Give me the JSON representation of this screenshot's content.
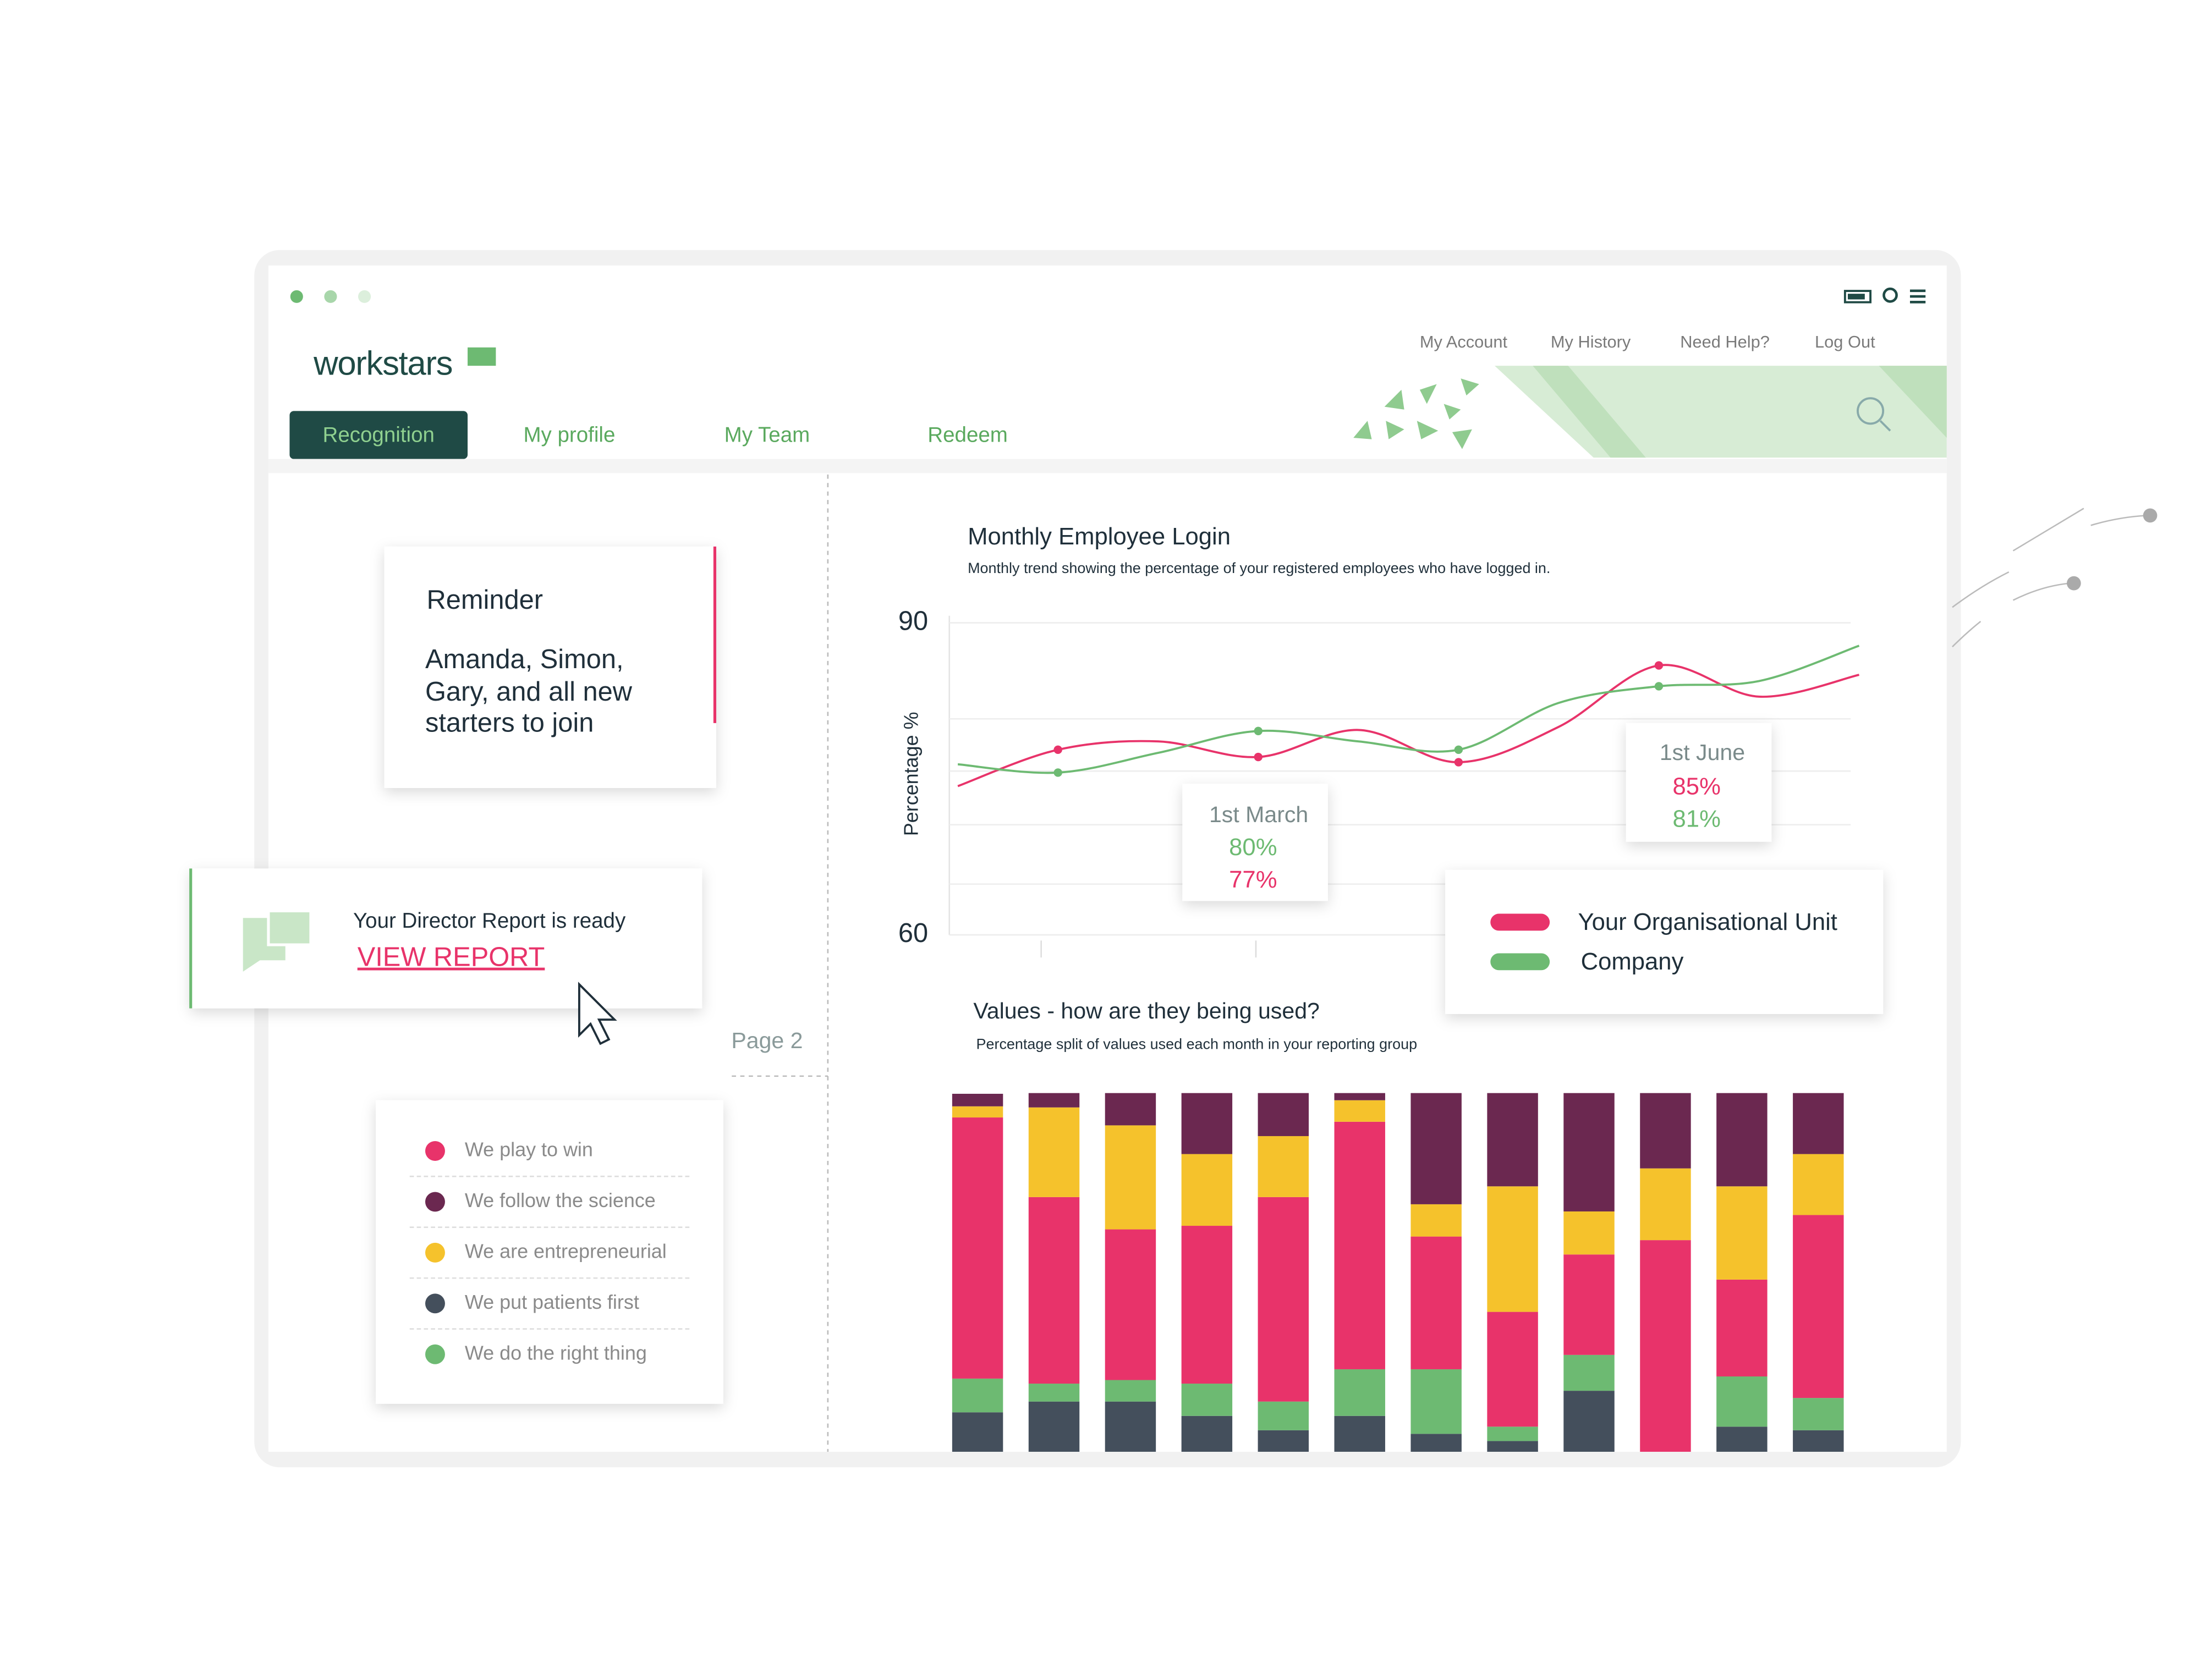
{
  "header": {
    "logo": "workstars",
    "links": [
      "My Account",
      "My History",
      "Need Help?",
      "Log Out"
    ],
    "tabs": [
      "Recognition",
      "My profile",
      "My Team",
      "Redeem"
    ]
  },
  "reminder": {
    "title": "Reminder",
    "body": [
      "Amanda, Simon,",
      "Gary, and all new",
      "starters to join"
    ]
  },
  "report": {
    "text": "Your Director Report is ready",
    "link": "VIEW REPORT"
  },
  "page_label": "Page 2",
  "chart_data": [
    {
      "type": "line",
      "title": "Monthly Employee Login",
      "subtitle": "Monthly trend showing the percentage of your registered employees who have logged in.",
      "y_label": "Percentage %",
      "categories": [
        null,
        null,
        null,
        null,
        null,
        null,
        null,
        null,
        null,
        null
      ],
      "series": [
        {
          "name": "Your Organisational Unit",
          "color": "#e8336a",
          "values": [
            74.3,
            77.8,
            78.6,
            77.1,
            79.7,
            76.6,
            80,
            85.9,
            82.9,
            85
          ]
        },
        {
          "name": "Company",
          "color": "#6dba72",
          "values": [
            76.4,
            75.6,
            77.5,
            79.6,
            78.6,
            77.8,
            82.3,
            83.9,
            84.4,
            87.8
          ]
        }
      ],
      "ylim": [
        60,
        90
      ],
      "yticks": [
        60,
        90
      ],
      "annotations": [
        {
          "text": "1st March",
          "lines": [
            "80%",
            "77%"
          ]
        },
        {
          "text": "1st June",
          "lines": [
            "85%",
            "81%"
          ]
        }
      ]
    },
    {
      "type": "bar",
      "stacked": true,
      "title": "Values - how are they being used?",
      "subtitle": "Percentage split of values used each month in your reporting group",
      "categories": [
        null,
        null,
        null,
        null,
        null,
        null,
        null,
        null,
        null,
        null,
        null,
        null
      ],
      "ylim": [
        0,
        100
      ],
      "series": [
        {
          "name": "We put patients first",
          "color": "#444f5c",
          "values": [
            11,
            14,
            14,
            10,
            6,
            10,
            5,
            3,
            17,
            0,
            7,
            6
          ]
        },
        {
          "name": "We do the right thing",
          "color": "#6dba72",
          "values": [
            9.4,
            5,
            6,
            9,
            8,
            13,
            18,
            4,
            10,
            0,
            14,
            9
          ]
        },
        {
          "name": "We play to win",
          "color": "#e8336a",
          "values": [
            72.8,
            52,
            42,
            44,
            57,
            69,
            37,
            32,
            28,
            59,
            27,
            51
          ]
        },
        {
          "name": "We are entrepreneurial",
          "color": "#f5c22c",
          "values": [
            3.1,
            25,
            29,
            20,
            17,
            6,
            9,
            35,
            12,
            20,
            26,
            17
          ]
        },
        {
          "name": "We follow the science",
          "color": "#6b2850",
          "values": [
            3.5,
            4,
            9,
            17,
            12,
            2,
            31,
            26,
            33,
            21,
            26,
            17
          ]
        }
      ]
    }
  ]
}
